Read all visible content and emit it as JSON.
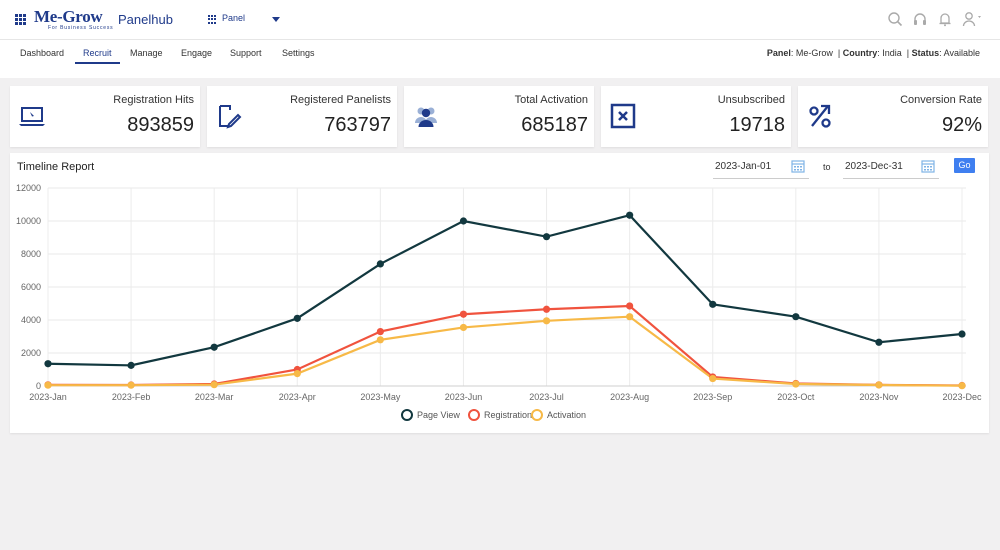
{
  "header": {
    "logo_text": "Me-Grow",
    "logo_tagline": "For Business Success",
    "app_name": "Panelhub",
    "panel_select_label": "Panel",
    "icons": [
      "search-icon",
      "headset-icon",
      "bell-icon",
      "user-icon"
    ]
  },
  "nav": {
    "items": [
      "Dashboard",
      "Recruit",
      "Manage",
      "Engage",
      "Support",
      "Settings"
    ],
    "active": "Recruit"
  },
  "status": {
    "panel_label": "Panel",
    "panel_value": "Me-Grow",
    "country_label": "Country",
    "country_value": "India",
    "status_label": "Status",
    "status_value": "Available"
  },
  "cards": [
    {
      "label": "Registration Hits",
      "value": "893859",
      "icon": "laptop-icon"
    },
    {
      "label": "Registered Panelists",
      "value": "763797",
      "icon": "edit-icon"
    },
    {
      "label": "Total Activation",
      "value": "685187",
      "icon": "users-icon"
    },
    {
      "label": "Unsubscribed",
      "value": "19718",
      "icon": "close-box-icon"
    },
    {
      "label": "Conversion Rate",
      "value": "92%",
      "icon": "percent-icon"
    }
  ],
  "report": {
    "title": "Timeline Report",
    "from_date": "2023-Jan-01",
    "to_label": "to",
    "to_date": "2023-Dec-31",
    "go_label": "Go"
  },
  "colors": {
    "brand": "#1f3a8a",
    "page_view": "#12383f",
    "registration": "#f0533e",
    "activation": "#f7b947",
    "go_button": "#3f7ff0"
  },
  "chart_data": {
    "type": "line",
    "categories": [
      "2023-Jan",
      "2023-Feb",
      "2023-Mar",
      "2023-Apr",
      "2023-May",
      "2023-Jun",
      "2023-Jul",
      "2023-Aug",
      "2023-Sep",
      "2023-Oct",
      "2023-Nov",
      "2023-Dec"
    ],
    "series": [
      {
        "name": "Page View",
        "values": [
          1350,
          1250,
          2350,
          4100,
          7400,
          10000,
          9050,
          10350,
          4950,
          4200,
          2650,
          3150
        ]
      },
      {
        "name": "Registration",
        "values": [
          70,
          60,
          120,
          1000,
          3300,
          4350,
          4650,
          4850,
          550,
          150,
          70,
          30
        ]
      },
      {
        "name": "Activation",
        "values": [
          50,
          50,
          80,
          750,
          2800,
          3550,
          3950,
          4200,
          450,
          120,
          60,
          20
        ]
      }
    ],
    "y_ticks": [
      0,
      2000,
      4000,
      6000,
      8000,
      10000,
      12000
    ],
    "ylim": [
      0,
      12000
    ],
    "grid": true,
    "legend_position": "bottom"
  }
}
